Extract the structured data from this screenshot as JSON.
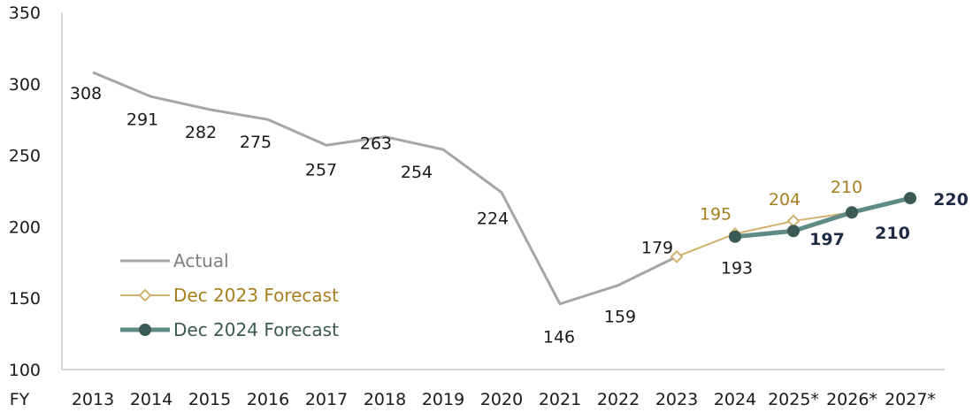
{
  "chart_data": {
    "type": "line",
    "title": "",
    "xlabel": "",
    "ylabel": "",
    "x_prefix": "FY",
    "categories": [
      "2013",
      "2014",
      "2015",
      "2016",
      "2017",
      "2018",
      "2019",
      "2020",
      "2021",
      "2022",
      "2023",
      "2024",
      "2025*",
      "2026*",
      "2027*"
    ],
    "yticks": [
      100,
      150,
      200,
      250,
      300,
      350
    ],
    "ylim": [
      100,
      350
    ],
    "grid": false,
    "legend": "bottom-left",
    "series": [
      {
        "name": "Actual",
        "color": "#a6a6a6",
        "marker": "none",
        "x": [
          "2013",
          "2014",
          "2015",
          "2016",
          "2017",
          "2018",
          "2019",
          "2020",
          "2021",
          "2022",
          "2023"
        ],
        "values": [
          308,
          291,
          282,
          275,
          257,
          263,
          254,
          224,
          146,
          159,
          179
        ],
        "labels": [
          "308",
          "291",
          "282",
          "275",
          "257",
          "263",
          "254",
          "224",
          "146",
          "159",
          "179"
        ]
      },
      {
        "name": "Dec 2023 Forecast",
        "color": "#d4b06e",
        "label_color": "#a87f1f",
        "marker": "diamond-open",
        "x": [
          "2023",
          "2024",
          "2025*",
          "2026*"
        ],
        "values": [
          179,
          195,
          204,
          210
        ],
        "labels": [
          "",
          "195",
          "204",
          "210"
        ]
      },
      {
        "name": "Dec 2024 Forecast",
        "color": "#5f8b86",
        "marker_color": "#3b5a53",
        "label_color": "#1f2b44",
        "marker": "circle-filled",
        "x": [
          "2024",
          "2025*",
          "2026*",
          "2027*"
        ],
        "values": [
          193,
          197,
          210,
          220
        ],
        "labels": [
          "193",
          "197",
          "210",
          "220"
        ]
      }
    ]
  }
}
